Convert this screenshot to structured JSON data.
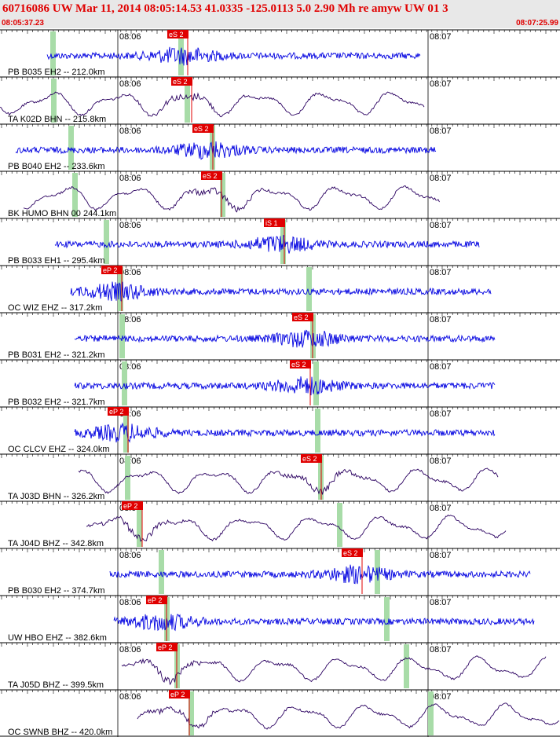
{
  "header": {
    "title": "60716086 UW Mar 11, 2014 08:05:14.53   41.0335 -125.0113  5.0 2.90 Mh re amyw UW 01   3",
    "start_time": "08:05:37.23",
    "end_time": "08:07:25.99"
  },
  "time_ticks": [
    "08:06",
    "08:07"
  ],
  "traces": [
    {
      "label": "PB B035 EH2 -- 212.0km",
      "pick": "eS 2"
    },
    {
      "label": "TA K02D BHN -- 215.8km",
      "pick": "eS 2"
    },
    {
      "label": "PB B040 EH2 -- 233.6km",
      "pick": "eS 2"
    },
    {
      "label": "BK HUMO BHN 00 244.1km",
      "pick": "eS 2"
    },
    {
      "label": "PB B033 EH1 -- 295.4km",
      "pick": "iS 1"
    },
    {
      "label": "OC WIZ EHZ -- 317.2km",
      "pick": "eP 2"
    },
    {
      "label": "PB B031 EH2 -- 321.2km",
      "pick": "eS 2"
    },
    {
      "label": "PB B032 EH2 -- 321.7km",
      "pick": "eS 2"
    },
    {
      "label": "OC CLCV EHZ -- 324.0km",
      "pick": "eP 2"
    },
    {
      "label": "TA J03D BHN -- 326.2km",
      "pick": "eS 2"
    },
    {
      "label": "TA J04D BHZ -- 342.8km",
      "pick": "eP 2"
    },
    {
      "label": "PB B030 EH2 -- 374.7km",
      "pick": "eS 2"
    },
    {
      "label": "UW HBO EHZ -- 382.6km",
      "pick": "eP 2"
    },
    {
      "label": "TA J05D BHZ -- 399.5km",
      "pick": "eP 2"
    },
    {
      "label": "OC SWNB BHZ -- 420.0km",
      "pick": "eP 2"
    }
  ]
}
